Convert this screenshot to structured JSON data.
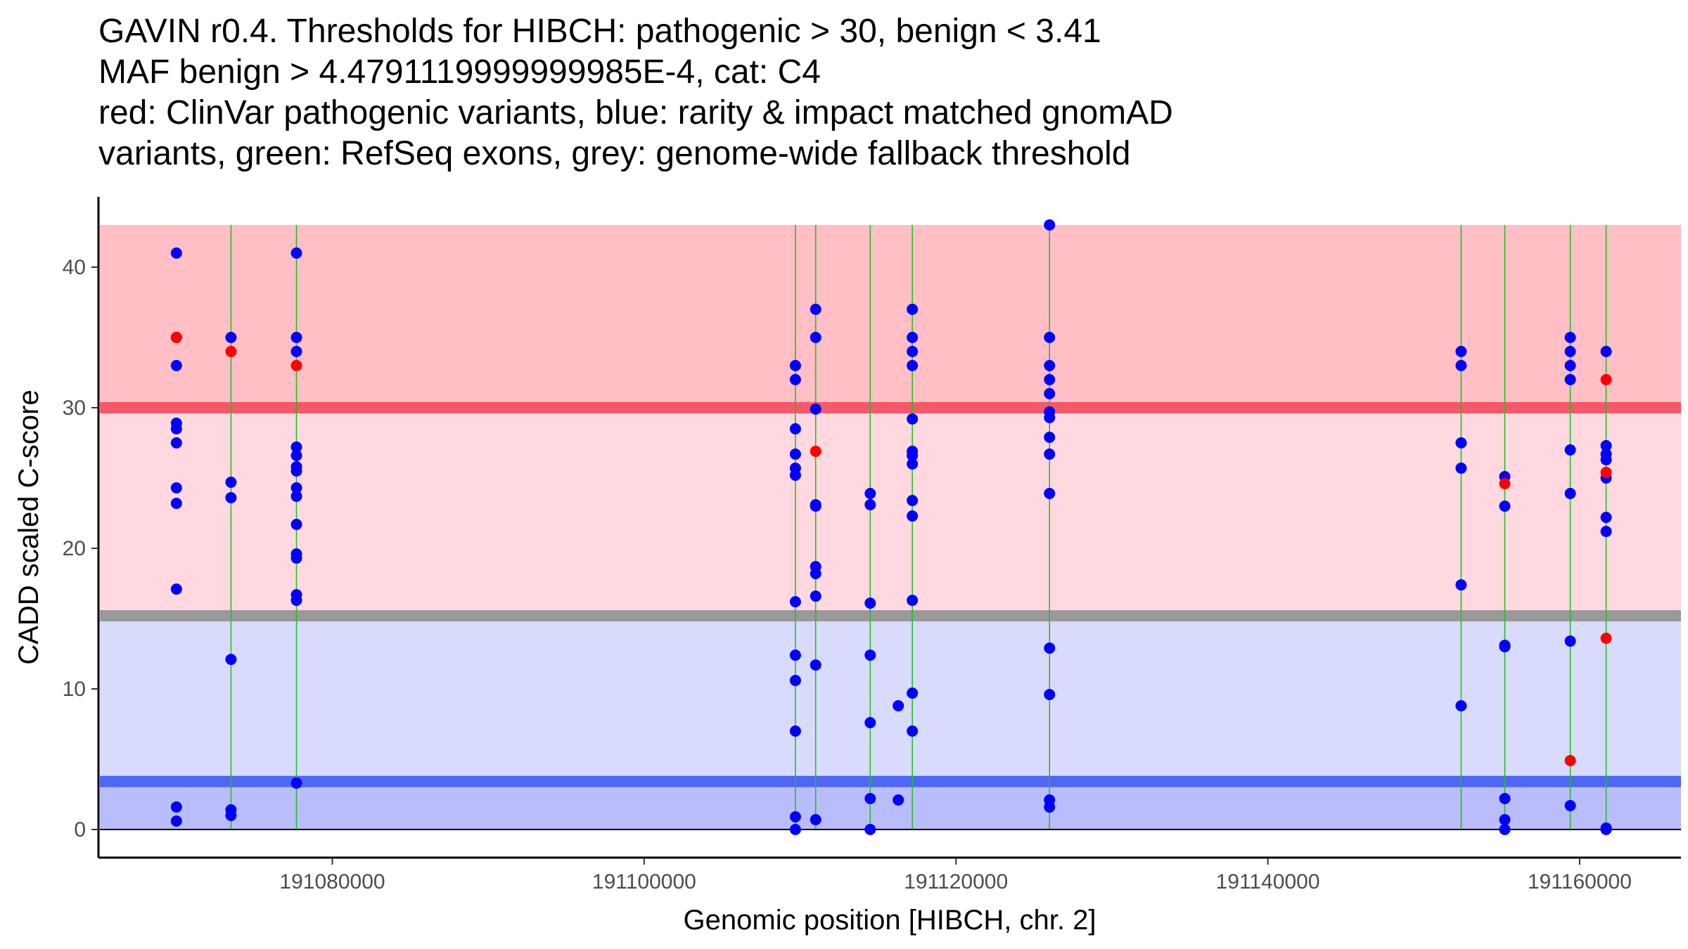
{
  "chart_data": {
    "type": "scatter",
    "title_lines": [
      "GAVIN r0.4. Thresholds for HIBCH: pathogenic > 30, benign < 3.41",
      "MAF benign > 4.4791119999999985E-4, cat: C4",
      "red: ClinVar pathogenic variants, blue: rarity & impact matched gnomAD",
      "variants, green: RefSeq exons, grey: genome-wide fallback threshold"
    ],
    "xlabel": "Genomic position [HIBCH, chr. 2]",
    "ylabel": "CADD scaled C-score",
    "xlim": [
      191065000,
      191166500
    ],
    "ylim": [
      -2,
      45
    ],
    "xticks": [
      191080000,
      191100000,
      191120000,
      191140000,
      191160000
    ],
    "yticks": [
      0,
      10,
      20,
      30,
      40
    ],
    "regions": [
      {
        "name": "pathogenic-zone",
        "ymin": 30,
        "ymax": 43,
        "color": "#ffbfc5"
      },
      {
        "name": "intermediate-upper-zone",
        "ymin": 15.2,
        "ymax": 30,
        "color": "#ffd9df"
      },
      {
        "name": "intermediate-lower-zone",
        "ymin": 3.41,
        "ymax": 15.2,
        "color": "#d9dbfc"
      },
      {
        "name": "benign-zone",
        "ymin": 0,
        "ymax": 3.41,
        "color": "#babdfc"
      }
    ],
    "threshold_lines": [
      {
        "name": "pathogenic-threshold",
        "y": 30,
        "color": "#f55869"
      },
      {
        "name": "fallback-threshold",
        "y": 15.2,
        "color": "#999999"
      },
      {
        "name": "benign-threshold",
        "y": 3.41,
        "color": "#5066f5"
      }
    ],
    "exons": [
      191073500,
      191077700,
      191109700,
      191111000,
      191114500,
      191117200,
      191126000,
      191152400,
      191155200,
      191159400,
      191161700
    ],
    "series": [
      {
        "name": "gnomAD matched variants",
        "color": "#0000ff",
        "points": [
          [
            191070000,
            41
          ],
          [
            191070000,
            35
          ],
          [
            191070000,
            33
          ],
          [
            191070000,
            28.9
          ],
          [
            191070000,
            28.5
          ],
          [
            191070000,
            27.5
          ],
          [
            191070000,
            24.3
          ],
          [
            191070000,
            23.2
          ],
          [
            191070000,
            17.1
          ],
          [
            191070000,
            1.6
          ],
          [
            191070000,
            0.6
          ],
          [
            191073500,
            35
          ],
          [
            191073500,
            24.7
          ],
          [
            191073500,
            23.6
          ],
          [
            191073500,
            12.1
          ],
          [
            191073500,
            1.4
          ],
          [
            191073500,
            1.0
          ],
          [
            191077700,
            41
          ],
          [
            191077700,
            35
          ],
          [
            191077700,
            34
          ],
          [
            191077700,
            27.2
          ],
          [
            191077700,
            26.6
          ],
          [
            191077700,
            25.8
          ],
          [
            191077700,
            25.5
          ],
          [
            191077700,
            24.3
          ],
          [
            191077700,
            23.7
          ],
          [
            191077700,
            21.7
          ],
          [
            191077700,
            19.6
          ],
          [
            191077700,
            19.3
          ],
          [
            191077700,
            16.7
          ],
          [
            191077700,
            16.3
          ],
          [
            191077700,
            3.3
          ],
          [
            191109700,
            33
          ],
          [
            191109700,
            32
          ],
          [
            191109700,
            28.5
          ],
          [
            191109700,
            26.7
          ],
          [
            191109700,
            25.7
          ],
          [
            191109700,
            25.2
          ],
          [
            191109700,
            16.2
          ],
          [
            191109700,
            12.4
          ],
          [
            191109700,
            10.6
          ],
          [
            191109700,
            7.0
          ],
          [
            191109700,
            0.9
          ],
          [
            191109700,
            0.0
          ],
          [
            191111000,
            37
          ],
          [
            191111000,
            35
          ],
          [
            191111000,
            29.9
          ],
          [
            191111000,
            23.1
          ],
          [
            191111000,
            23.0
          ],
          [
            191111000,
            18.7
          ],
          [
            191111000,
            18.2
          ],
          [
            191111000,
            16.6
          ],
          [
            191111000,
            11.7
          ],
          [
            191111000,
            0.7
          ],
          [
            191114500,
            23.9
          ],
          [
            191114500,
            23.1
          ],
          [
            191114500,
            16.1
          ],
          [
            191114500,
            12.4
          ],
          [
            191114500,
            7.6
          ],
          [
            191114500,
            2.2
          ],
          [
            191114500,
            0.0
          ],
          [
            191116300,
            8.8
          ],
          [
            191116300,
            2.1
          ],
          [
            191117200,
            37
          ],
          [
            191117200,
            35
          ],
          [
            191117200,
            34
          ],
          [
            191117200,
            33
          ],
          [
            191117200,
            29.2
          ],
          [
            191117200,
            26.9
          ],
          [
            191117200,
            26.6
          ],
          [
            191117200,
            26.0
          ],
          [
            191117200,
            23.4
          ],
          [
            191117200,
            22.3
          ],
          [
            191117200,
            16.3
          ],
          [
            191117200,
            9.7
          ],
          [
            191117200,
            7.0
          ],
          [
            191126000,
            43
          ],
          [
            191126000,
            35
          ],
          [
            191126000,
            33
          ],
          [
            191126000,
            32
          ],
          [
            191126000,
            31
          ],
          [
            191126000,
            29.7
          ],
          [
            191126000,
            29.3
          ],
          [
            191126000,
            27.9
          ],
          [
            191126000,
            26.7
          ],
          [
            191126000,
            23.9
          ],
          [
            191126000,
            12.9
          ],
          [
            191126000,
            9.6
          ],
          [
            191126000,
            2.1
          ],
          [
            191126000,
            1.6
          ],
          [
            191152400,
            34
          ],
          [
            191152400,
            33
          ],
          [
            191152400,
            27.5
          ],
          [
            191152400,
            25.7
          ],
          [
            191152400,
            17.4
          ],
          [
            191152400,
            8.8
          ],
          [
            191155200,
            25.1
          ],
          [
            191155200,
            23.0
          ],
          [
            191155200,
            13.1
          ],
          [
            191155200,
            13.0
          ],
          [
            191155200,
            2.2
          ],
          [
            191155200,
            0.7
          ],
          [
            191155200,
            0.0
          ],
          [
            191159400,
            35
          ],
          [
            191159400,
            34
          ],
          [
            191159400,
            33
          ],
          [
            191159400,
            32
          ],
          [
            191159400,
            27.0
          ],
          [
            191159400,
            23.9
          ],
          [
            191159400,
            13.4
          ],
          [
            191159400,
            1.7
          ],
          [
            191161700,
            34
          ],
          [
            191161700,
            27.3
          ],
          [
            191161700,
            26.7
          ],
          [
            191161700,
            26.3
          ],
          [
            191161700,
            25.0
          ],
          [
            191161700,
            22.2
          ],
          [
            191161700,
            21.2
          ],
          [
            191161700,
            0.1
          ],
          [
            191161700,
            0.0
          ]
        ]
      },
      {
        "name": "ClinVar pathogenic variants",
        "color": "#ff0000",
        "points": [
          [
            191070000,
            35
          ],
          [
            191073500,
            34
          ],
          [
            191077700,
            33
          ],
          [
            191111000,
            26.9
          ],
          [
            191155200,
            24.6
          ],
          [
            191159400,
            4.9
          ],
          [
            191161700,
            32
          ],
          [
            191161700,
            25.4
          ],
          [
            191161700,
            13.6
          ]
        ]
      }
    ]
  }
}
